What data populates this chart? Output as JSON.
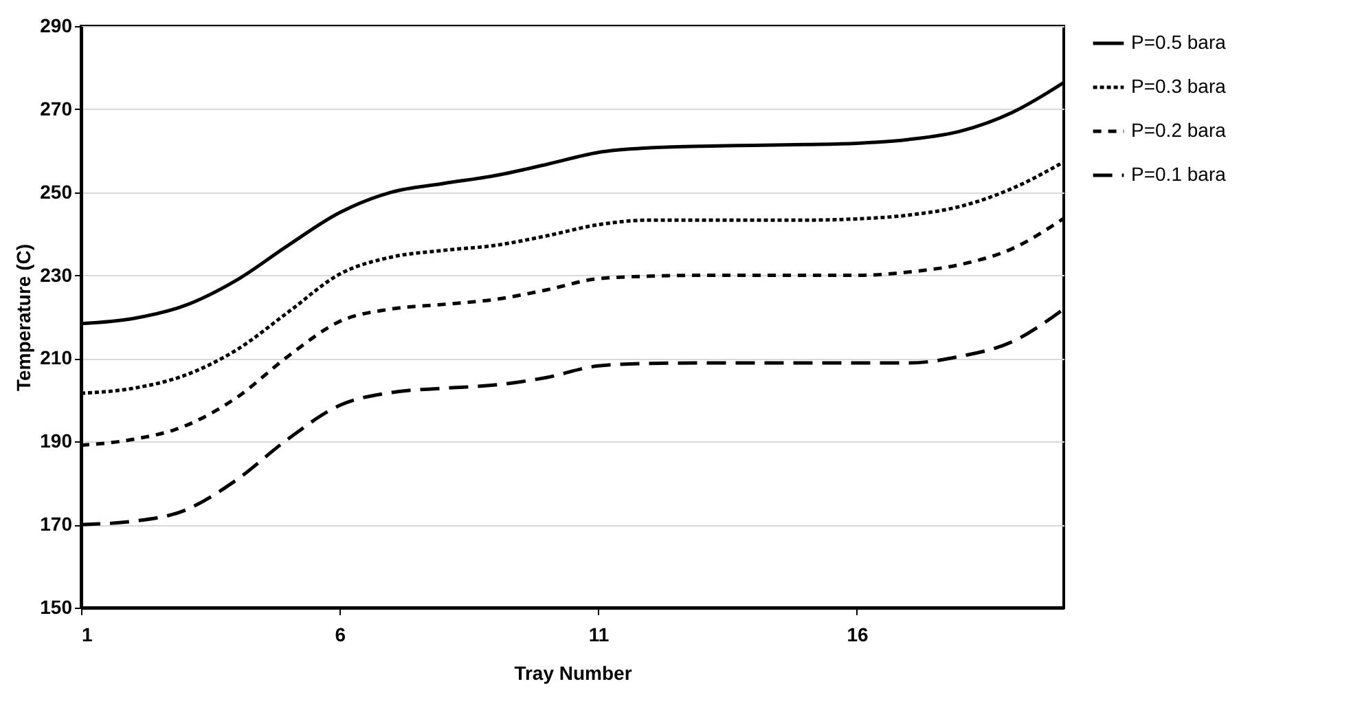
{
  "chart_data": {
    "type": "line",
    "xlabel": "Tray Number",
    "ylabel": "Temperature (C)",
    "x": [
      1,
      2,
      3,
      4,
      5,
      6,
      7,
      8,
      9,
      10,
      11,
      12,
      13,
      14,
      15,
      16,
      17,
      18,
      19,
      20
    ],
    "series": [
      {
        "name": "P=0.5 bara",
        "color": "#000000",
        "line_style": "solid",
        "values": [
          218.4,
          219.6,
          222.7,
          228.8,
          237.2,
          245.1,
          250,
          252.1,
          254,
          256.7,
          259.6,
          260.7,
          261.1,
          261.3,
          261.5,
          261.8,
          262.7,
          264.7,
          269.2,
          276.4
        ]
      },
      {
        "name": "P=0.3 bara",
        "color": "#000000",
        "line_style": "dotted",
        "values": [
          201.6,
          202.8,
          205.9,
          212,
          221.1,
          230.3,
          234.4,
          236,
          237.2,
          239.5,
          242.2,
          243.3,
          243.3,
          243.3,
          243.3,
          243.6,
          244.5,
          246.6,
          250.9,
          257.3
        ]
      },
      {
        "name": "P=0.2 bara",
        "color": "#000000",
        "line_style": "dashed",
        "values": [
          189.1,
          190.5,
          193.7,
          200.5,
          210.5,
          218.9,
          221.9,
          223,
          224.2,
          226.5,
          229.2,
          229.8,
          230,
          230,
          230,
          230,
          230.8,
          232.6,
          236.4,
          243.7
        ]
      },
      {
        "name": "P=0.1 bara",
        "color": "#000000",
        "line_style": "dashed",
        "values": [
          170,
          170.8,
          173.4,
          180.7,
          190.6,
          198.7,
          201.8,
          202.8,
          203.6,
          205.4,
          208.2,
          208.8,
          208.9,
          208.9,
          208.9,
          208.9,
          208.9,
          210.5,
          214,
          221.9
        ]
      }
    ],
    "xlim": [
      1,
      20
    ],
    "xticks": [
      1,
      6,
      11,
      16
    ],
    "ylim": [
      150,
      290
    ],
    "yticks": [
      150,
      170,
      190,
      210,
      230,
      250,
      270,
      290
    ],
    "grid": "y",
    "legend": "right",
    "marker": "none"
  }
}
